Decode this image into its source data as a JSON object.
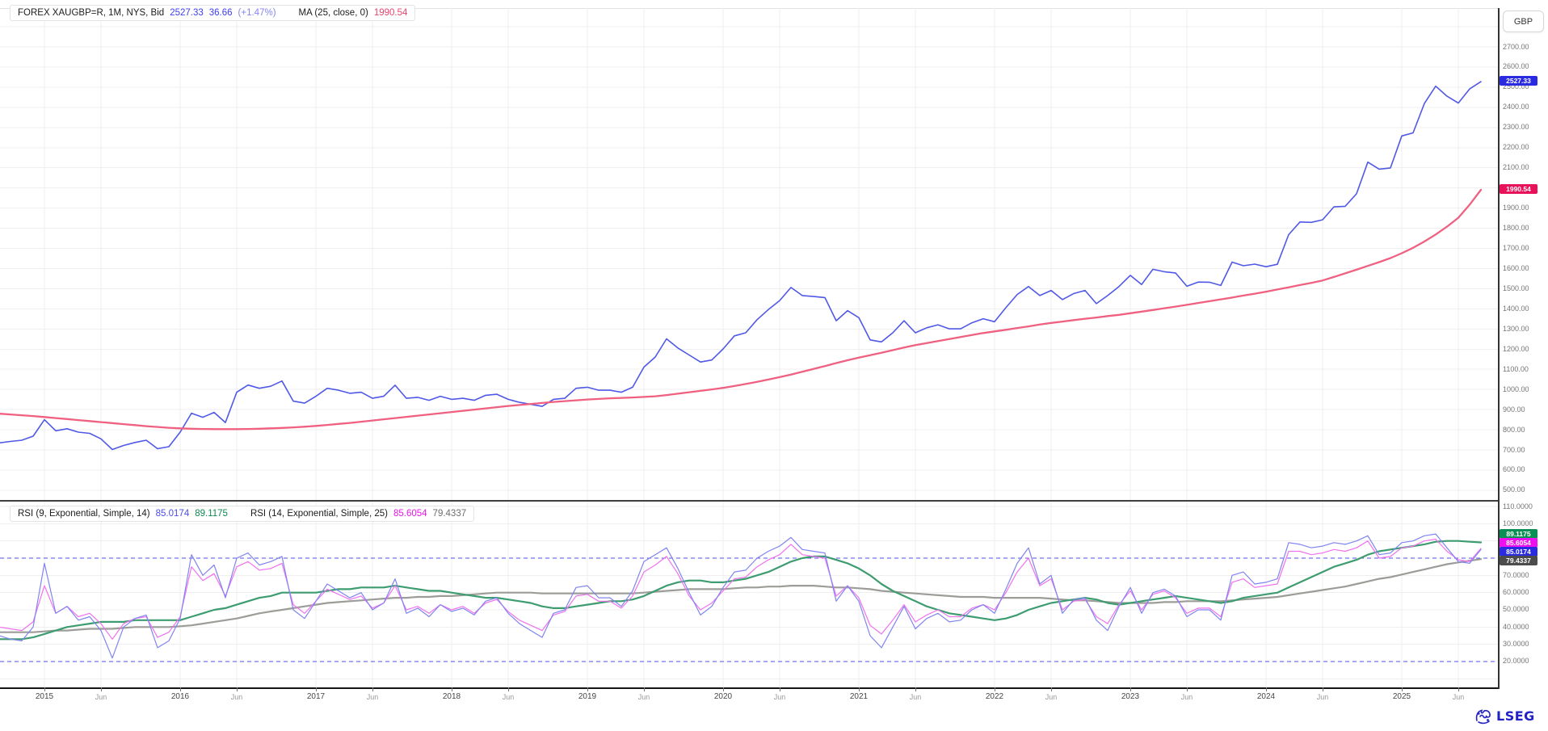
{
  "header": {
    "instrument_label": "FOREX XAUGBP=R, 1M, NYS, Bid",
    "last_price": "2527.33",
    "net_change": "36.66",
    "pct_change": "(+1.47%)",
    "ma_label": "MA (25, close, 0)",
    "ma_value": "1990.54"
  },
  "rsi_legend": {
    "rsi1_label": "RSI (9, Exponential, Simple, 14)",
    "rsi1_value": "85.0174",
    "rsi1_avg": "89.1175",
    "rsi2_label": "RSI (14, Exponential, Simple, 25)",
    "rsi2_value": "85.6054",
    "rsi2_avg": "79.4337"
  },
  "right_axis": {
    "currency_label": "GBP",
    "price_badge": "2527.33",
    "ma_badge": "1990.54",
    "price_ticks": {
      "labels": [
        "2700.00",
        "2600.00",
        "2500.00",
        "2400.00",
        "2300.00",
        "2200.00",
        "2100.00",
        "2000.00",
        "1900.00",
        "1800.00",
        "1700.00",
        "1600.00",
        "1500.00",
        "1400.00",
        "1300.00",
        "1200.00",
        "1100.00",
        "1000.00",
        "900.00",
        "800.00",
        "700.00",
        "600.00",
        "500.00"
      ],
      "values": [
        2700,
        2600,
        2500,
        2400,
        2300,
        2200,
        2100,
        2000,
        1900,
        1800,
        1700,
        1600,
        1500,
        1400,
        1300,
        1200,
        1100,
        1000,
        900,
        800,
        700,
        600,
        500
      ]
    },
    "rsi_ticks": {
      "labels": [
        "110.0000",
        "100.0000",
        "90.0000",
        "80.0000",
        "70.0000",
        "60.0000",
        "50.0000",
        "40.0000",
        "30.0000",
        "20.0000"
      ],
      "values": [
        110,
        100,
        90,
        80,
        70,
        60,
        50,
        40,
        30,
        20
      ]
    },
    "rsi_badges": [
      {
        "label": "89.1175",
        "color": "#0a8f55"
      },
      {
        "label": "85.6054",
        "color": "#ee10ee"
      },
      {
        "label": "85.0174",
        "color": "#2a2ae0"
      },
      {
        "label": "79.4337",
        "color": "#4c4c4c"
      }
    ]
  },
  "x_axis": {
    "year_labels": [
      "2015",
      "2016",
      "2017",
      "2018",
      "2019",
      "2020",
      "2021",
      "2022",
      "2023",
      "2024",
      "2025"
    ],
    "minor_label": "Jun"
  },
  "branding": {
    "logo_text": "LSEG"
  },
  "colors": {
    "price_line": "#5059e6",
    "ma_line": "#f06080",
    "rsi_fast": "#8084f0",
    "rsi_fast_avg": "#3d9c70",
    "rsi_slow": "#ef72ee",
    "rsi_slow_avg": "#9c9c98",
    "price_badge_bg": "#2a2ae0",
    "ma_badge_bg": "#e8125a",
    "band_line": "#5050e8",
    "grid": "#efefef",
    "legend_last_color": "#3d3df0",
    "legend_pct_color": "#8585f2",
    "legend_ma_color": "#e8446f",
    "rsi1_value_color": "#4a4af0",
    "rsi1_avg_color": "#0d8a52",
    "rsi2_value_color": "#e816e8",
    "rsi2_avg_color": "#6e6e6e"
  },
  "chart_data": [
    {
      "type": "line",
      "title": "FOREX XAUGBP=R, 1M, NYS, Bid with MA(25, close, 0)",
      "xlabel": "",
      "ylabel": "GBP",
      "x_start_month": "2014-09",
      "x_end_month": "2025-08",
      "interval": "monthly",
      "ylim": [
        460,
        2810
      ],
      "grid": true,
      "x_tick_years": [
        2015,
        2016,
        2017,
        2018,
        2019,
        2020,
        2021,
        2022,
        2023,
        2024,
        2025
      ],
      "series": [
        {
          "name": "XAUGBP Bid",
          "color": "#5059e6",
          "values": [
            735,
            742,
            748,
            768,
            850,
            795,
            805,
            788,
            782,
            755,
            702,
            722,
            737,
            748,
            706,
            716,
            788,
            882,
            862,
            886,
            836,
            986,
            1022,
            1006,
            1016,
            1042,
            942,
            932,
            966,
            1006,
            996,
            981,
            986,
            956,
            966,
            1021,
            956,
            961,
            946,
            966,
            951,
            956,
            946,
            971,
            976,
            951,
            936,
            926,
            916,
            951,
            956,
            1006,
            1011,
            996,
            996,
            986,
            1011,
            1111,
            1161,
            1251,
            1206,
            1171,
            1136,
            1146,
            1201,
            1266,
            1281,
            1346,
            1396,
            1441,
            1506,
            1466,
            1461,
            1456,
            1341,
            1391,
            1356,
            1246,
            1236,
            1281,
            1341,
            1281,
            1306,
            1321,
            1301,
            1301,
            1331,
            1351,
            1336,
            1406,
            1471,
            1511,
            1466,
            1491,
            1446,
            1476,
            1491,
            1426,
            1466,
            1511,
            1566,
            1521,
            1596,
            1584,
            1578,
            1512,
            1533,
            1532,
            1516,
            1632,
            1614,
            1622,
            1609,
            1621,
            1768,
            1831,
            1829,
            1842,
            1906,
            1909,
            1971,
            2128,
            2093,
            2099,
            2258,
            2273,
            2419,
            2505,
            2455,
            2421,
            2491,
            2527.33
          ]
        },
        {
          "name": "MA (25, close, 0)",
          "color": "#f06080",
          "values": [
            880,
            876,
            872,
            868,
            863,
            858,
            853,
            848,
            843,
            838,
            833,
            828,
            823,
            818,
            814,
            810,
            807,
            805,
            804,
            803,
            803,
            803,
            804,
            805,
            807,
            809,
            812,
            815,
            819,
            824,
            829,
            834,
            840,
            846,
            852,
            858,
            864,
            870,
            876,
            882,
            888,
            894,
            900,
            906,
            912,
            918,
            923,
            928,
            933,
            938,
            942,
            946,
            950,
            953,
            956,
            958,
            960,
            963,
            966,
            972,
            979,
            986,
            993,
            1000,
            1008,
            1017,
            1027,
            1038,
            1049,
            1061,
            1074,
            1088,
            1102,
            1116,
            1131,
            1145,
            1158,
            1170,
            1182,
            1195,
            1208,
            1220,
            1230,
            1240,
            1250,
            1260,
            1270,
            1280,
            1288,
            1296,
            1305,
            1313,
            1322,
            1330,
            1337,
            1344,
            1351,
            1357,
            1364,
            1370,
            1378,
            1386,
            1394,
            1403,
            1411,
            1420,
            1429,
            1438,
            1447,
            1456,
            1466,
            1475,
            1485,
            1496,
            1507,
            1518,
            1529,
            1541,
            1558,
            1576,
            1594,
            1613,
            1632,
            1652,
            1676,
            1703,
            1734,
            1769,
            1808,
            1852,
            1917,
            1990.54
          ]
        }
      ]
    },
    {
      "type": "line",
      "title": "RSI (9, Exponential, Simple, 14) and RSI (14, Exponential, Simple, 25)",
      "x_start_month": "2014-09",
      "x_end_month": "2025-08",
      "interval": "monthly",
      "ylim": [
        5,
        113
      ],
      "grid": true,
      "reference_levels": [
        80,
        20
      ],
      "series": [
        {
          "name": "RSI(14) avg(25)",
          "color": "#9c9c98",
          "values": [
            37,
            37,
            37,
            37,
            37.5,
            38,
            38,
            38.5,
            39,
            39,
            39,
            39.5,
            40,
            40,
            40,
            40,
            40.5,
            41,
            42,
            43,
            44,
            45,
            46.5,
            48,
            49,
            50,
            51,
            52,
            53,
            54,
            54.5,
            55,
            55.5,
            56,
            56.5,
            57,
            57,
            57.5,
            57.5,
            58,
            58,
            58.5,
            59,
            59.5,
            60,
            60,
            60,
            60,
            59.5,
            59.5,
            59.5,
            59.5,
            59.5,
            59.5,
            59.5,
            59.5,
            59.5,
            60,
            60.5,
            61,
            61.5,
            62,
            62,
            62,
            62,
            62.5,
            63,
            63,
            63.5,
            63.5,
            64,
            64,
            64,
            63.5,
            63,
            63,
            62.5,
            62,
            61,
            60.5,
            60,
            59.5,
            59,
            58.5,
            58,
            57.5,
            57.5,
            57.5,
            57,
            57,
            57,
            57,
            57,
            56.5,
            56,
            55.5,
            55.5,
            55,
            54.5,
            54,
            54,
            54,
            54,
            54.5,
            54.5,
            55,
            55,
            55,
            55,
            55.5,
            56,
            56.5,
            57,
            57.5,
            58.5,
            59.5,
            60.5,
            61.5,
            62.5,
            63.5,
            65,
            66.5,
            68,
            69,
            70.5,
            72,
            73.5,
            75,
            76.5,
            77.5,
            78.5,
            79.4337
          ]
        },
        {
          "name": "RSI(9) avg(14)",
          "color": "#3d9c70",
          "values": [
            33,
            33,
            33,
            34,
            36,
            38,
            40,
            41,
            42,
            43,
            43,
            43,
            44,
            44,
            44,
            44,
            44,
            46,
            48,
            50,
            51,
            53,
            55,
            57,
            58,
            60,
            60,
            60,
            60,
            61,
            62,
            62,
            63,
            63,
            63,
            64,
            63,
            62,
            61,
            61,
            60,
            59,
            58,
            57,
            57,
            56,
            55,
            54,
            52,
            51,
            51,
            52,
            53,
            54,
            55,
            55,
            56,
            58,
            61,
            64,
            66,
            67,
            67,
            66,
            66,
            67,
            68,
            70,
            72,
            75,
            78,
            80,
            81,
            81,
            79,
            77,
            74,
            70,
            65,
            61,
            58,
            55,
            52,
            50,
            48,
            47,
            46,
            45,
            44,
            45,
            47,
            50,
            52,
            54,
            55,
            56,
            57,
            56,
            54,
            53,
            54,
            55,
            56,
            57,
            58,
            57,
            56,
            55,
            54,
            55,
            57,
            58,
            59,
            60,
            63,
            66,
            69,
            72,
            75,
            77,
            79,
            82,
            84,
            85,
            86,
            87,
            88,
            89.5,
            90,
            90,
            89.5,
            89.1175
          ]
        },
        {
          "name": "RSI(14)",
          "color": "#ef72ee",
          "values": [
            40,
            39,
            38,
            43,
            64,
            48,
            52,
            46,
            48,
            42,
            33,
            42,
            45,
            46,
            34,
            37,
            46,
            75,
            67,
            71,
            58,
            75,
            78,
            73,
            74,
            77,
            53,
            48,
            55,
            62,
            59,
            56,
            58,
            51,
            54,
            64,
            50,
            52,
            48,
            53,
            50,
            52,
            48,
            54,
            56,
            49,
            44,
            41,
            38,
            47,
            49,
            58,
            59,
            55,
            55,
            51,
            58,
            72,
            76,
            81,
            71,
            58,
            50,
            54,
            61,
            68,
            69,
            75,
            79,
            82,
            88,
            82,
            81,
            80,
            58,
            64,
            57,
            41,
            36,
            44,
            53,
            43,
            47,
            50,
            46,
            46,
            51,
            53,
            50,
            60,
            72,
            80,
            64,
            68,
            50,
            55,
            56,
            46,
            42,
            53,
            61,
            50,
            59,
            61,
            57,
            48,
            51,
            51,
            46,
            66,
            68,
            63,
            64,
            65,
            84,
            84,
            82,
            83,
            85,
            84,
            86,
            90,
            80,
            81,
            86,
            87,
            90,
            91,
            84,
            79,
            78,
            85.6054
          ]
        },
        {
          "name": "RSI(9)",
          "color": "#8084f0",
          "values": [
            35,
            33,
            32,
            40,
            77,
            48,
            52,
            44,
            46,
            38,
            22,
            40,
            45,
            47,
            28,
            32,
            45,
            82,
            70,
            76,
            57,
            80,
            83,
            76,
            78,
            81,
            50,
            45,
            55,
            65,
            61,
            57,
            60,
            50,
            54,
            68,
            48,
            51,
            46,
            53,
            49,
            51,
            47,
            55,
            57,
            48,
            42,
            38,
            34,
            48,
            50,
            63,
            64,
            57,
            57,
            52,
            61,
            78,
            82,
            86,
            74,
            60,
            47,
            52,
            63,
            72,
            73,
            80,
            84,
            87,
            92,
            85,
            84,
            83,
            55,
            64,
            55,
            35,
            28,
            40,
            52,
            39,
            45,
            48,
            43,
            44,
            50,
            53,
            48,
            62,
            77,
            86,
            65,
            70,
            48,
            56,
            57,
            44,
            38,
            52,
            63,
            48,
            60,
            62,
            58,
            46,
            50,
            50,
            44,
            70,
            72,
            65,
            66,
            68,
            89,
            88,
            86,
            87,
            89,
            88,
            90,
            93,
            82,
            83,
            89,
            90,
            93,
            94,
            86,
            78,
            77,
            85.0174
          ]
        }
      ]
    }
  ]
}
